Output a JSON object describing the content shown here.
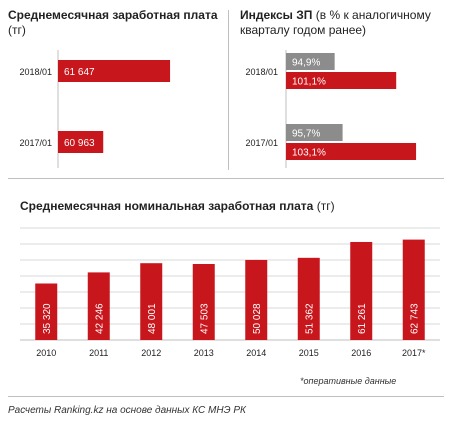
{
  "colors": {
    "accent": "#c8161d",
    "gray": "#8c8c8c",
    "grid": "#d9d9d9",
    "axis": "#bfbfbf"
  },
  "left_panel": {
    "title_bold": "Среднемесячная заработная плата",
    "title_unit": "(тг)"
  },
  "right_panel": {
    "title_bold": "Индексы ЗП",
    "title_rest": "(в % к аналогичному кварталу годом ранее)"
  },
  "bottom_panel": {
    "title_bold": "Среднемесячная номинальная заработная плата",
    "title_unit": "(тг)"
  },
  "footnote": "*оперативные данные",
  "source": "Расчеты Ranking.kz на основе данных КС МНЭ РК",
  "chart_data": [
    {
      "type": "bar",
      "orientation": "horizontal",
      "title": "Среднемесячная заработная плата (тг)",
      "categories": [
        "2018/01",
        "2017/01"
      ],
      "series": [
        {
          "values": [
            61647,
            60963
          ],
          "labels": [
            "61 647",
            "60 963"
          ],
          "color": "#c8161d"
        }
      ],
      "xlim": [
        60500,
        61800
      ],
      "grid": false
    },
    {
      "type": "bar",
      "orientation": "horizontal",
      "title": "Индексы ЗП (в % к аналогичному кварталу годом ранее)",
      "categories": [
        "2018/01",
        "2017/01"
      ],
      "series": [
        {
          "values": [
            94.9,
            95.7
          ],
          "labels": [
            "94,9%",
            "95,7%"
          ],
          "color": "#8c8c8c"
        },
        {
          "values": [
            101.1,
            103.1
          ],
          "labels": [
            "101,1%",
            "103,1%"
          ],
          "color": "#c8161d"
        }
      ],
      "xlim": [
        90,
        104
      ],
      "grid": false
    },
    {
      "type": "bar",
      "orientation": "vertical",
      "title": "Среднемесячная номинальная заработная плата (тг)",
      "categories": [
        "2010",
        "2011",
        "2012",
        "2013",
        "2014",
        "2015",
        "2016",
        "2017*"
      ],
      "series": [
        {
          "values": [
            35320,
            42246,
            48001,
            47503,
            50028,
            51362,
            61261,
            62743
          ],
          "labels": [
            "35 320",
            "42 246",
            "48 001",
            "47 503",
            "50 028",
            "51 362",
            "61 261",
            "62 743"
          ],
          "color": "#c8161d"
        }
      ],
      "ylim": [
        0,
        70000
      ],
      "grid": true,
      "gridlines": 7
    }
  ]
}
